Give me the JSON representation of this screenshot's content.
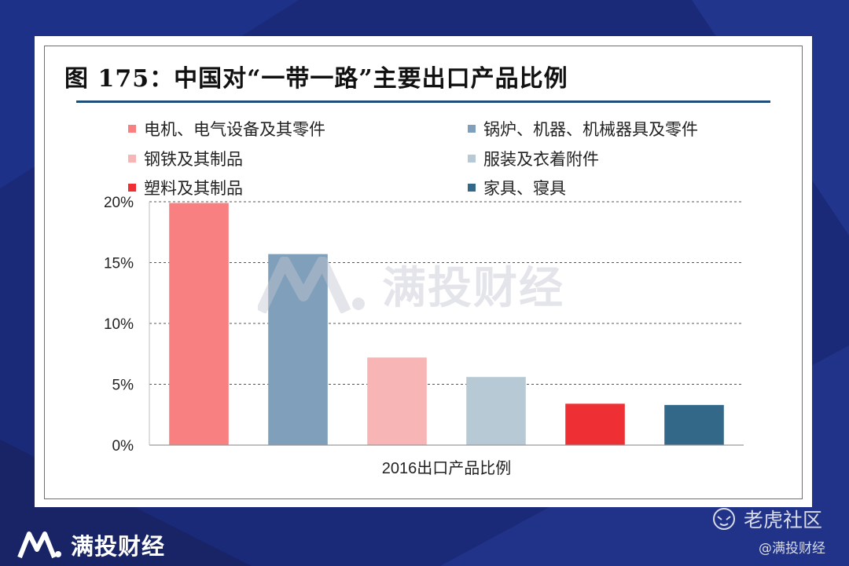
{
  "figure": {
    "title": "图 175：中国对“一带一路”主要出口产品比例"
  },
  "legend": [
    {
      "label": "电机、电气设备及其零件",
      "color": "#f88080"
    },
    {
      "label": "锅炉、机器、机械器具及零件",
      "color": "#7f9fba"
    },
    {
      "label": "钢铁及其制品",
      "color": "#f8b5b5"
    },
    {
      "label": "服装及衣着附件",
      "color": "#b8c9d6"
    },
    {
      "label": "塑料及其制品",
      "color": "#ee3034"
    },
    {
      "label": "家具、寝具",
      "color": "#336888"
    }
  ],
  "chart_data": {
    "type": "bar",
    "title": "",
    "xlabel": "2016出口产品比例",
    "ylabel": "",
    "categories": [
      "电机、电气设备及其零件",
      "锅炉、机器、机械器具及零件",
      "钢铁及其制品",
      "服装及衣着附件",
      "塑料及其制品",
      "家具、寝具"
    ],
    "values": [
      19.9,
      15.7,
      7.2,
      5.6,
      3.4,
      3.3
    ],
    "colors": [
      "#f88080",
      "#7f9fba",
      "#f8b5b5",
      "#b8c9d6",
      "#ee3034",
      "#336888"
    ],
    "ylim": [
      0,
      20
    ],
    "yticks": [
      0,
      5,
      10,
      15,
      20
    ],
    "ytick_labels": [
      "0%",
      "5%",
      "10%",
      "15%",
      "20%"
    ],
    "grid": "dashed-horizontal"
  },
  "watermark": {
    "text": "满投财经"
  },
  "footer": {
    "brand": "满投财经",
    "community": "老虎社区",
    "handle": "@满投财经"
  }
}
